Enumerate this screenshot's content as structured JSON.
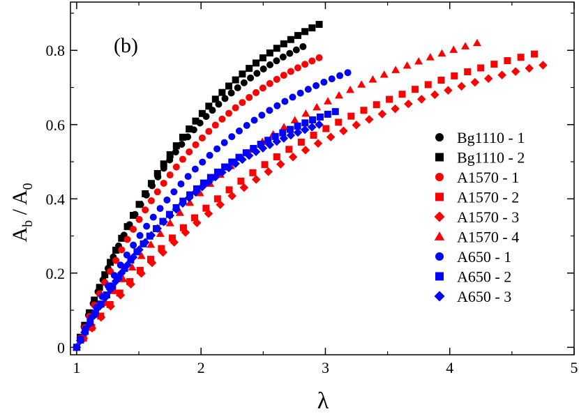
{
  "chart_data": {
    "type": "scatter",
    "title": "",
    "panel_label": "(b)",
    "xlabel": "λ",
    "ylabel_main": "A",
    "ylabel_sub_b": "b",
    "ylabel_sep": " / A",
    "ylabel_sub_0": "0",
    "xlim": [
      0.95,
      5.0
    ],
    "ylim": [
      -0.02,
      0.93
    ],
    "xticks": [
      1,
      2,
      3,
      4,
      5
    ],
    "xtick_labels": [
      "1",
      "2",
      "3",
      "4",
      "5"
    ],
    "yticks": [
      0,
      0.2,
      0.4,
      0.6,
      0.8
    ],
    "ytick_labels": [
      "0",
      "0.2",
      "0.4",
      "0.6",
      "0.8"
    ],
    "grid": false,
    "legend_position": "right",
    "series": [
      {
        "name": "Bg1110 - 1",
        "color": "#000000",
        "marker": "circle",
        "x_end": 2.82,
        "y_end": 0.81,
        "points": 40
      },
      {
        "name": "Bg1110 - 2",
        "color": "#000000",
        "marker": "square",
        "x_end": 2.95,
        "y_end": 0.87,
        "points": 40
      },
      {
        "name": "A1570 - 1",
        "color": "#ff0000",
        "marker": "circle",
        "x_end": 2.95,
        "y_end": 0.78,
        "points": 40
      },
      {
        "name": "A1570 - 2",
        "color": "#ff0000",
        "marker": "square",
        "x_end": 4.68,
        "y_end": 0.79,
        "points": 40
      },
      {
        "name": "A1570 - 3",
        "color": "#ff0000",
        "marker": "diamond",
        "x_end": 4.75,
        "y_end": 0.76,
        "points": 40
      },
      {
        "name": "A1570 - 4",
        "color": "#ff0000",
        "marker": "triangle",
        "x_end": 4.22,
        "y_end": 0.82,
        "points": 40
      },
      {
        "name": "A650 - 1",
        "color": "#0000ff",
        "marker": "circle",
        "x_end": 3.18,
        "y_end": 0.74,
        "points": 40
      },
      {
        "name": "A650 - 2",
        "color": "#0000ff",
        "marker": "square",
        "x_end": 3.08,
        "y_end": 0.635,
        "points": 40
      },
      {
        "name": "A650 - 3",
        "color": "#0000ff",
        "marker": "diamond",
        "x_end": 2.95,
        "y_end": 0.6,
        "points": 40
      }
    ]
  }
}
